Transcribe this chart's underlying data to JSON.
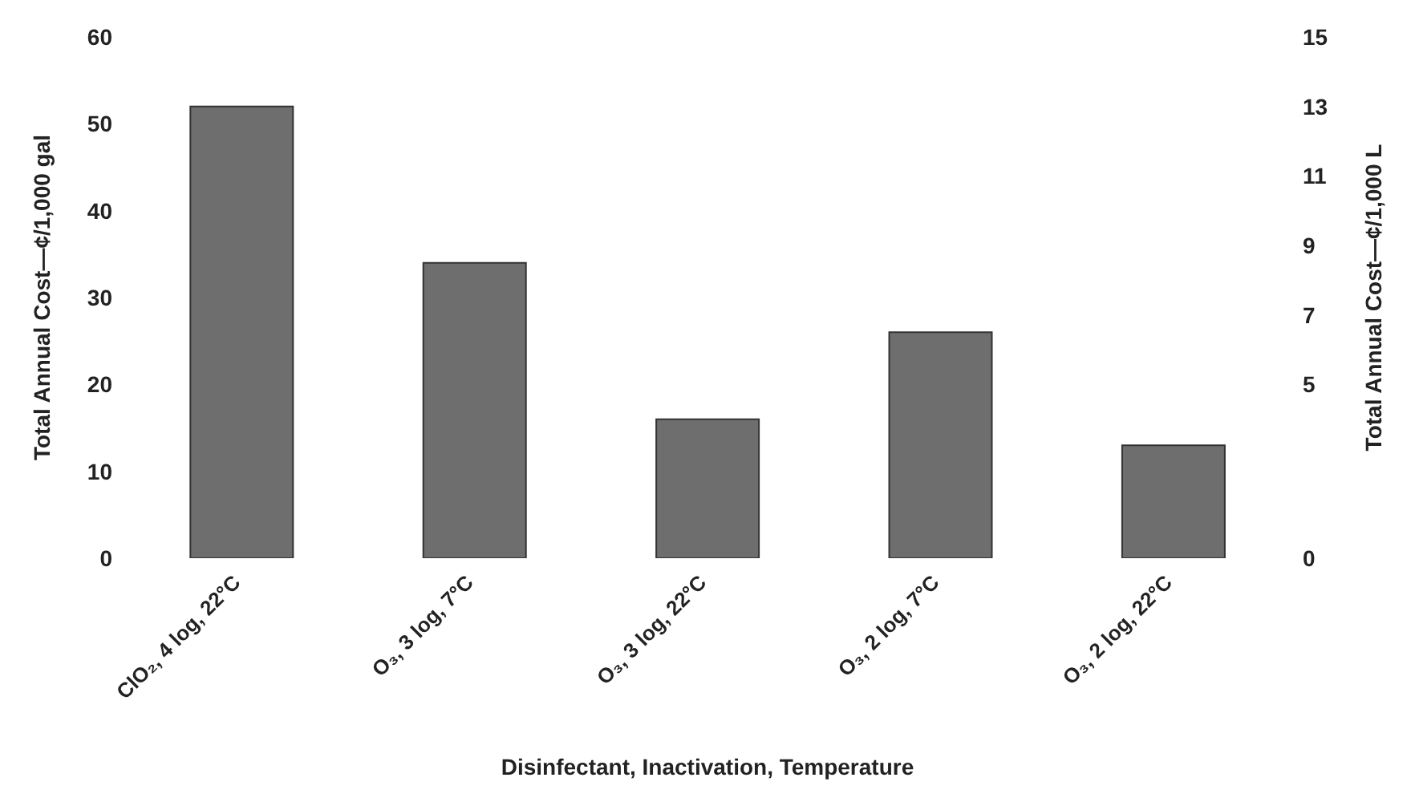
{
  "chart_data": {
    "type": "bar",
    "xlabel": "Disinfectant, Inactivation, Temperature",
    "ylabel": "Total Annual Cost—¢/1,000 gal",
    "y2label": "Total Annual Cost—¢/1,000 L",
    "categories": [
      "ClO₂, 4 log, 22°C",
      "O₃, 3 log, 7°C",
      "O₃, 3 log, 22°C",
      "O₃, 2 log, 7°C",
      "O₃, 2 log, 22°C"
    ],
    "values": [
      52,
      34,
      16,
      26,
      13
    ],
    "color": "#6e6e6e",
    "ylim": [
      0,
      60
    ],
    "yticks": [
      0,
      10,
      20,
      30,
      40,
      50,
      60
    ],
    "y2lim": [
      0,
      15
    ],
    "y2ticks": [
      0,
      5,
      7,
      9,
      11,
      13,
      15
    ],
    "grid": false
  }
}
